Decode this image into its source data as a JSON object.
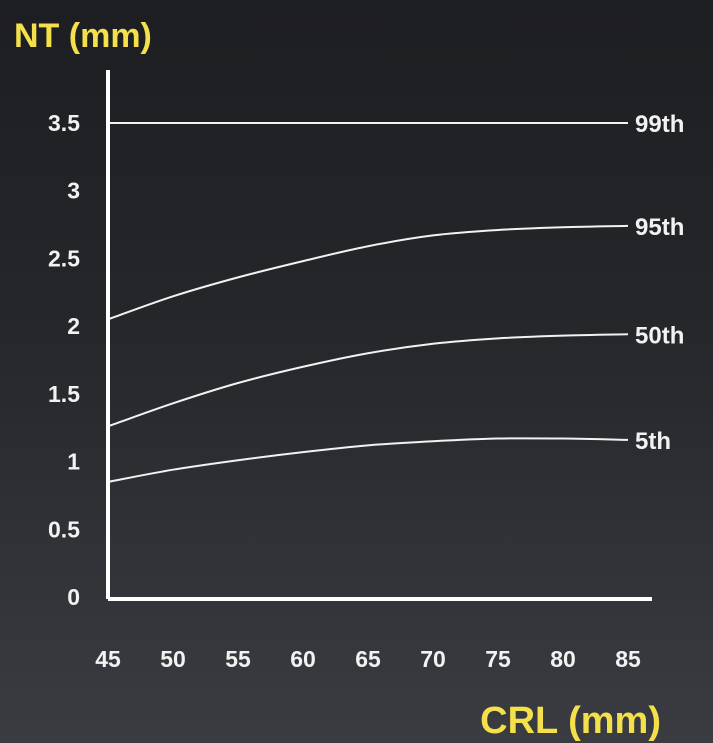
{
  "chart_data": {
    "type": "line",
    "xlabel": "CRL  (mm)",
    "ylabel": "NT (mm)",
    "xlim": [
      45,
      85
    ],
    "ylim": [
      0,
      3.5
    ],
    "x_ticks": [
      "45",
      "50",
      "55",
      "60",
      "65",
      "70",
      "75",
      "80",
      "85"
    ],
    "y_ticks": [
      "0",
      "0.5",
      "1",
      "1.5",
      "2",
      "2.5",
      "3",
      "3.5"
    ],
    "x": [
      45,
      50,
      55,
      60,
      65,
      70,
      75,
      80,
      85
    ],
    "grid": false,
    "legend": "inline labels at right end of lines",
    "series": [
      {
        "name": "99th",
        "values": [
          3.5,
          3.5,
          3.5,
          3.5,
          3.5,
          3.5,
          3.5,
          3.5,
          3.5
        ]
      },
      {
        "name": "95th",
        "values": [
          2.05,
          2.22,
          2.36,
          2.48,
          2.59,
          2.67,
          2.71,
          2.73,
          2.74
        ]
      },
      {
        "name": "50th",
        "values": [
          1.26,
          1.43,
          1.58,
          1.7,
          1.8,
          1.87,
          1.91,
          1.93,
          1.94
        ]
      },
      {
        "name": "5th",
        "values": [
          0.85,
          0.94,
          1.01,
          1.07,
          1.12,
          1.15,
          1.17,
          1.17,
          1.16
        ]
      }
    ],
    "colors": {
      "axis_title": "#f4e04a",
      "ticks": "#f2f2f2",
      "lines": "#f2f2f2",
      "axis": "#ffffff"
    }
  }
}
